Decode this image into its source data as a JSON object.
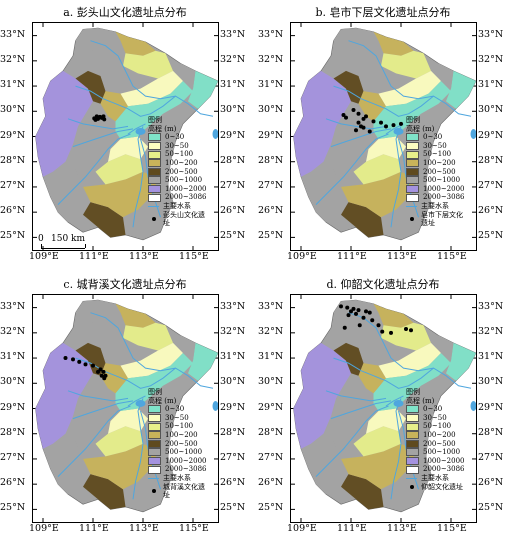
{
  "colors": {
    "0-30": "#7fe3c9",
    "30-50": "#fdfec0",
    "50-100": "#e7ef8a",
    "100-200": "#c8b35a",
    "200-500": "#5f4a1e",
    "500-1000": "#a3a3a3",
    "1000-2000": "#a492df",
    "2000-3086": "#ffffff",
    "river": "#4fa6de",
    "site": "#000000"
  },
  "lon_labels": [
    "109°E",
    "111°E",
    "113°E",
    "115°E"
  ],
  "lat_labels": [
    "33°N",
    "32°N",
    "31°N",
    "30°N",
    "29°N",
    "28°N",
    "27°N",
    "26°N",
    "25°N"
  ],
  "legend_common": {
    "title_line1": "图例",
    "title_line2": "高程 (m)",
    "classes": [
      "0~30",
      "30~50",
      "50~100",
      "100~200",
      "200~500",
      "500~1000",
      "1000~2000",
      "2000~3086"
    ],
    "river_label": "主要水系"
  },
  "scalebar": {
    "zero": "0",
    "distance": "150 km"
  },
  "panels": [
    {
      "title": "a. 彭头山文化遗址点分布",
      "site_label": "彭头山文化遗址",
      "sites": [
        [
          111.05,
          29.72
        ],
        [
          111.15,
          29.8
        ],
        [
          111.2,
          29.7
        ],
        [
          111.28,
          29.78
        ],
        [
          111.35,
          29.74
        ],
        [
          111.42,
          29.8
        ],
        [
          111.45,
          29.68
        ],
        [
          111.1,
          29.66
        ]
      ]
    },
    {
      "title": "b. 皂市下层文化遗址点分布",
      "site_label": "皂市下层文化遗址",
      "sites": [
        [
          110.7,
          29.85
        ],
        [
          110.8,
          29.75
        ],
        [
          111.1,
          30.05
        ],
        [
          111.3,
          29.9
        ],
        [
          111.5,
          29.7
        ],
        [
          111.6,
          29.8
        ],
        [
          111.3,
          29.55
        ],
        [
          111.5,
          29.35
        ],
        [
          111.75,
          29.2
        ],
        [
          111.2,
          29.25
        ],
        [
          112.4,
          29.4
        ],
        [
          112.2,
          29.55
        ],
        [
          113.0,
          29.5
        ],
        [
          112.7,
          29.45
        ],
        [
          111.4,
          29.4
        ],
        [
          111.9,
          29.6
        ]
      ]
    },
    {
      "title": "c. 城背溪文化遗址点分布",
      "site_label": "城背溪文化遗址",
      "sites": [
        [
          109.9,
          31.0
        ],
        [
          110.2,
          30.95
        ],
        [
          110.45,
          30.85
        ],
        [
          110.7,
          30.75
        ],
        [
          111.0,
          30.7
        ],
        [
          111.3,
          30.55
        ],
        [
          111.42,
          30.45
        ],
        [
          111.35,
          30.3
        ],
        [
          111.5,
          30.3
        ],
        [
          111.45,
          30.2
        ],
        [
          111.2,
          30.45
        ]
      ]
    },
    {
      "title": "d. 仰韶文化遗址点分布",
      "site_label": "仰韶文化遗址",
      "sites": [
        [
          110.6,
          33.05
        ],
        [
          110.85,
          33.0
        ],
        [
          111.1,
          32.95
        ],
        [
          111.3,
          32.9
        ],
        [
          111.0,
          32.85
        ],
        [
          111.6,
          32.85
        ],
        [
          111.75,
          32.8
        ],
        [
          111.2,
          32.75
        ],
        [
          110.9,
          32.7
        ],
        [
          111.5,
          32.6
        ],
        [
          111.85,
          32.5
        ],
        [
          112.1,
          32.3
        ],
        [
          112.25,
          32.05
        ],
        [
          112.6,
          32.0
        ],
        [
          113.2,
          32.15
        ],
        [
          113.4,
          32.1
        ],
        [
          110.75,
          32.2
        ],
        [
          111.35,
          32.3
        ]
      ]
    }
  ]
}
